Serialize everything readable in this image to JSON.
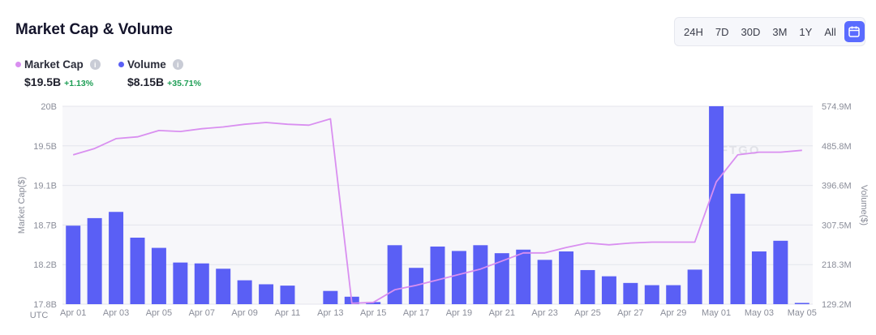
{
  "header": {
    "title": "Market Cap & Volume"
  },
  "time_ranges": [
    "24H",
    "7D",
    "30D",
    "3M",
    "1Y",
    "All"
  ],
  "legend": [
    {
      "label": "Market Cap",
      "color": "#d98ff0",
      "value": "$19.5B",
      "change": "+1.13%"
    },
    {
      "label": "Volume",
      "color": "#5a5ff5",
      "value": "$8.15B",
      "change": "+35.71%"
    }
  ],
  "watermark": "NFTGO",
  "chart_data": {
    "type": "bar+line",
    "timezone_label": "UTC",
    "ylabel_left": "Market Cap($)",
    "ylabel_right": "Volume($)",
    "left_ticks": [
      "20B",
      "19.5B",
      "19.1B",
      "18.7B",
      "18.2B",
      "17.8B"
    ],
    "right_ticks": [
      "574.9M",
      "485.8M",
      "396.6M",
      "307.5M",
      "218.3M",
      "129.2M"
    ],
    "left_range": [
      17.8,
      20.0
    ],
    "right_range": [
      129.2,
      574.9
    ],
    "x_tick_labels": [
      "Apr 01",
      "Apr 03",
      "Apr 05",
      "Apr 07",
      "Apr 09",
      "Apr 11",
      "Apr 13",
      "Apr 15",
      "Apr 17",
      "Apr 19",
      "Apr 21",
      "Apr 23",
      "Apr 25",
      "Apr 27",
      "Apr 29",
      "May 01",
      "May 03",
      "May 05"
    ],
    "categories": [
      "Apr 01",
      "Apr 02",
      "Apr 03",
      "Apr 04",
      "Apr 05",
      "Apr 06",
      "Apr 07",
      "Apr 08",
      "Apr 09",
      "Apr 10",
      "Apr 11",
      "Apr 12",
      "Apr 13",
      "Apr 14",
      "Apr 15",
      "Apr 16",
      "Apr 17",
      "Apr 18",
      "Apr 19",
      "Apr 20",
      "Apr 21",
      "Apr 22",
      "Apr 23",
      "Apr 24",
      "Apr 25",
      "Apr 26",
      "Apr 27",
      "Apr 28",
      "Apr 29",
      "Apr 30",
      "May 01",
      "May 02",
      "May 03",
      "May 04",
      "May 05"
    ],
    "series": [
      {
        "name": "Market Cap",
        "axis": "left",
        "type": "line",
        "values": [
          19.46,
          19.53,
          19.64,
          19.66,
          19.73,
          19.72,
          19.75,
          19.77,
          19.8,
          19.82,
          19.8,
          19.79,
          19.86,
          17.81,
          17.82,
          17.96,
          18.01,
          18.07,
          18.13,
          18.19,
          18.28,
          18.37,
          18.37,
          18.43,
          18.48,
          18.46,
          18.48,
          18.49,
          18.49,
          18.49,
          19.16,
          19.46,
          19.49,
          19.49,
          19.51
        ]
      },
      {
        "name": "Volume",
        "axis": "right",
        "type": "bar",
        "values": [
          306,
          323,
          337,
          279,
          256,
          223,
          221,
          209,
          183,
          174,
          171,
          null,
          159,
          146,
          134,
          262,
          211,
          259,
          249,
          262,
          244,
          252,
          229,
          248,
          206,
          192,
          177,
          172,
          172,
          207,
          575,
          378,
          248,
          272,
          132
        ]
      }
    ]
  }
}
